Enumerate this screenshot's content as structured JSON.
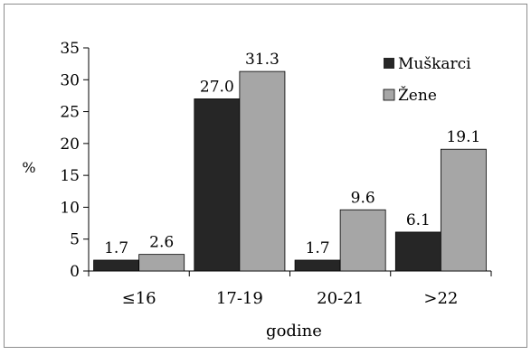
{
  "chart_data": {
    "type": "bar",
    "categories": [
      "≤16",
      "17-19",
      "20-21",
      ">22"
    ],
    "series": [
      {
        "name": "Muškarci",
        "values": [
          1.7,
          27.0,
          1.7,
          6.1
        ],
        "color": "#262626"
      },
      {
        "name": "Žene",
        "values": [
          2.6,
          31.3,
          9.6,
          19.1
        ],
        "color": "#a6a6a6"
      }
    ],
    "data_labels": [
      [
        "1.7",
        "27.0",
        "1.7",
        "6.1"
      ],
      [
        "2.6",
        "31.3",
        "9.6",
        "19.1"
      ]
    ],
    "yticks": [
      "0",
      "5",
      "10",
      "15",
      "20",
      "25",
      "30",
      "35"
    ],
    "ylim": [
      0,
      35
    ],
    "xlabel": "godine",
    "ylabel": "%",
    "legend_position": "top-right",
    "grid": false
  }
}
